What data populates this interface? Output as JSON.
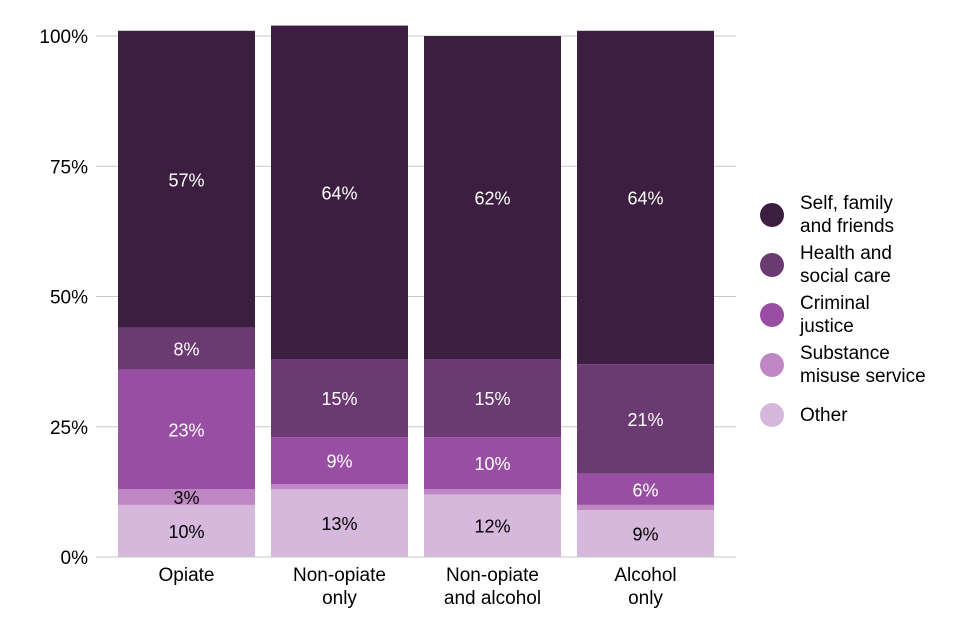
{
  "chart_data": {
    "type": "bar",
    "stacked": true,
    "categories": [
      "Opiate",
      "Non-opiate\nonly",
      "Non-opiate\nand alcohol",
      "Alcohol\nonly"
    ],
    "series": [
      {
        "name": "Other",
        "color": "#d5b8db",
        "values": [
          10,
          13,
          12,
          9
        ],
        "labels": [
          "10%",
          "13%",
          "12%",
          "9%"
        ]
      },
      {
        "name": "Substance misuse service",
        "color": "#bf88c4",
        "values": [
          3,
          1,
          1,
          1
        ],
        "labels": [
          "3%",
          "",
          "",
          ""
        ]
      },
      {
        "name": "Criminal justice",
        "color": "#984fa3",
        "values": [
          23,
          9,
          10,
          6
        ],
        "labels": [
          "23%",
          "9%",
          "10%",
          "6%"
        ]
      },
      {
        "name": "Health and social care",
        "color": "#6b3a72",
        "values": [
          8,
          15,
          15,
          21
        ],
        "labels": [
          "8%",
          "15%",
          "15%",
          "21%"
        ]
      },
      {
        "name": "Self, family and friends",
        "color": "#3c1f40",
        "values": [
          57,
          64,
          62,
          64
        ],
        "labels": [
          "57%",
          "64%",
          "62%",
          "64%"
        ]
      }
    ],
    "label_colors": [
      "#000000",
      "#000000",
      "#ffffff",
      "#ffffff",
      "#ffffff"
    ],
    "ylim": [
      0,
      100
    ],
    "yticks": [
      0,
      25,
      50,
      75,
      100
    ],
    "ytick_labels": [
      "0%",
      "25%",
      "50%",
      "75%",
      "100%"
    ],
    "grid": true,
    "legend_position": "right",
    "legend": [
      {
        "label": "Self, family\nand friends",
        "color": "#3c1f40"
      },
      {
        "label": "Health and\nsocial care",
        "color": "#6b3a72"
      },
      {
        "label": "Criminal\njustice",
        "color": "#984fa3"
      },
      {
        "label": "Substance\nmisuse service",
        "color": "#bf88c4"
      },
      {
        "label": "Other",
        "color": "#d5b8db"
      }
    ],
    "title": "",
    "xlabel": "",
    "ylabel": ""
  }
}
